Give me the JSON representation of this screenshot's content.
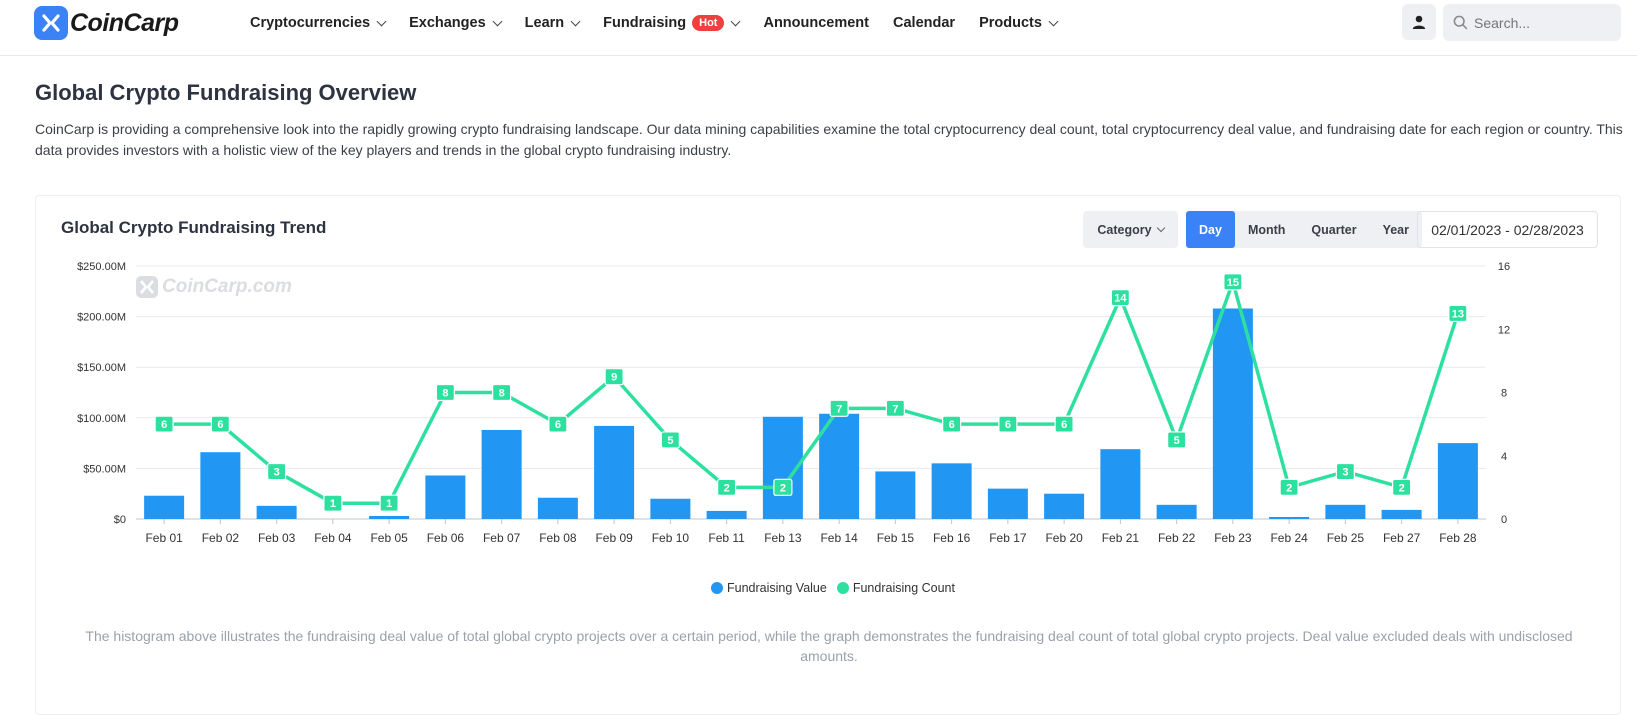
{
  "header": {
    "brand": "CoinCarp",
    "nav": [
      {
        "label": "Cryptocurrencies",
        "dropdown": true
      },
      {
        "label": "Exchanges",
        "dropdown": true
      },
      {
        "label": "Learn",
        "dropdown": true
      },
      {
        "label": "Fundraising",
        "dropdown": true,
        "badge": "Hot"
      },
      {
        "label": "Announcement",
        "dropdown": false
      },
      {
        "label": "Calendar",
        "dropdown": false
      },
      {
        "label": "Products",
        "dropdown": true
      }
    ],
    "search_placeholder": "Search..."
  },
  "page": {
    "title": "Global Crypto Fundraising Overview",
    "description": "CoinCarp is providing a comprehensive look into the rapidly growing crypto fundraising landscape. Our data mining capabilities examine the total cryptocurrency deal count, total cryptocurrency deal value, and fundraising date for each region or country. This data provides investors with a holistic view of the key players and trends in the global crypto fundraising industry."
  },
  "card": {
    "title": "Global Crypto Fundraising Trend",
    "category_label": "Category",
    "periods": [
      "Day",
      "Month",
      "Quarter",
      "Year"
    ],
    "active_period": "Day",
    "date_range": "02/01/2023 - 02/28/2023",
    "watermark": "CoinCarp.com",
    "footnote": "The histogram above illustrates the fundraising deal value of total global crypto projects over a certain period, while the graph demonstrates the fundraising deal count of total global crypto projects. Deal value excluded deals with undisclosed amounts."
  },
  "colors": {
    "accent": "#3b82f6",
    "bar": "#2196f3",
    "line": "#2ee0a0",
    "hot": "#ef3f3f"
  },
  "chart_data": {
    "type": "bar",
    "categories": [
      "Feb 01",
      "Feb 02",
      "Feb 03",
      "Feb 04",
      "Feb 05",
      "Feb 06",
      "Feb 07",
      "Feb 08",
      "Feb 09",
      "Feb 10",
      "Feb 11",
      "Feb 13",
      "Feb 14",
      "Feb 15",
      "Feb 16",
      "Feb 17",
      "Feb 20",
      "Feb 21",
      "Feb 22",
      "Feb 23",
      "Feb 24",
      "Feb 25",
      "Feb 27",
      "Feb 28"
    ],
    "series": [
      {
        "name": "Fundraising Value",
        "type": "bar",
        "axis": "left",
        "values": [
          23,
          66,
          13,
          0,
          3,
          43,
          88,
          21,
          92,
          20,
          8,
          101,
          104,
          47,
          55,
          30,
          25,
          69,
          14,
          208,
          2,
          14,
          9,
          75
        ]
      },
      {
        "name": "Fundraising Count",
        "type": "line",
        "axis": "right",
        "values": [
          6,
          6,
          3,
          1,
          1,
          8,
          8,
          6,
          9,
          5,
          2,
          2,
          7,
          7,
          6,
          6,
          6,
          14,
          5,
          15,
          2,
          3,
          2,
          13
        ]
      }
    ],
    "y_left": {
      "ticks": [
        "$0",
        "$50.00M",
        "$100.00M",
        "$150.00M",
        "$200.00M",
        "$250.00M"
      ],
      "range": [
        0,
        250
      ],
      "unit": "$M"
    },
    "y_right": {
      "ticks": [
        "0",
        "4",
        "8",
        "12",
        "16"
      ],
      "range": [
        0,
        16
      ]
    },
    "grid": true,
    "legend": "bottom-center"
  }
}
